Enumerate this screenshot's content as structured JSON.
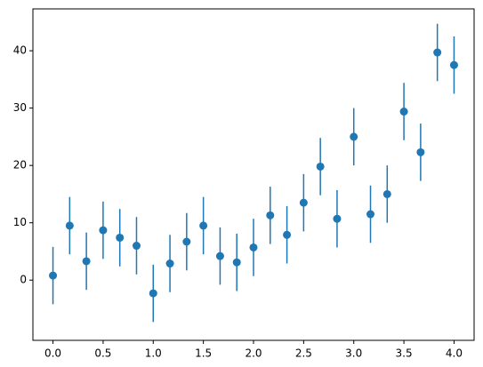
{
  "chart_data": {
    "type": "errorbar",
    "x": [
      0,
      0.1667,
      0.3333,
      0.5,
      0.6667,
      0.8333,
      1.0,
      1.1667,
      1.3333,
      1.5,
      1.6667,
      1.8333,
      2.0,
      2.1667,
      2.3333,
      2.5,
      2.6667,
      2.8333,
      3.0,
      3.1667,
      3.3333,
      3.5,
      3.6667,
      3.8333,
      4.0
    ],
    "series": [
      {
        "color": "#1f77b4",
        "values": [
          0.8,
          9.5,
          3.3,
          8.7,
          7.4,
          6.0,
          -2.3,
          2.9,
          6.7,
          9.5,
          4.2,
          3.1,
          5.7,
          11.3,
          7.9,
          13.5,
          19.8,
          10.7,
          25.0,
          11.5,
          15.0,
          29.4,
          22.3,
          39.7,
          37.5
        ],
        "yerr": [
          5,
          5,
          5,
          5,
          5,
          5,
          5,
          5,
          5,
          5,
          5,
          5,
          5,
          5,
          5,
          5,
          5,
          5,
          5,
          5,
          5,
          5,
          5,
          5,
          5
        ]
      }
    ],
    "xlim": [
      -0.2,
      4.2
    ],
    "ylim": [
      -10.5,
      47.3
    ],
    "xticks": [
      {
        "value": 0,
        "label": "0.0"
      },
      {
        "value": 0.5,
        "label": "0.5"
      },
      {
        "value": 1,
        "label": "1.0"
      },
      {
        "value": 1.5,
        "label": "1.5"
      },
      {
        "value": 2,
        "label": "2.0"
      },
      {
        "value": 2.5,
        "label": "2.5"
      },
      {
        "value": 3,
        "label": "3.0"
      },
      {
        "value": 3.5,
        "label": "3.5"
      },
      {
        "value": 4,
        "label": "4.0"
      }
    ],
    "yticks": [
      0,
      10,
      20,
      30,
      40
    ],
    "grid": false
  }
}
